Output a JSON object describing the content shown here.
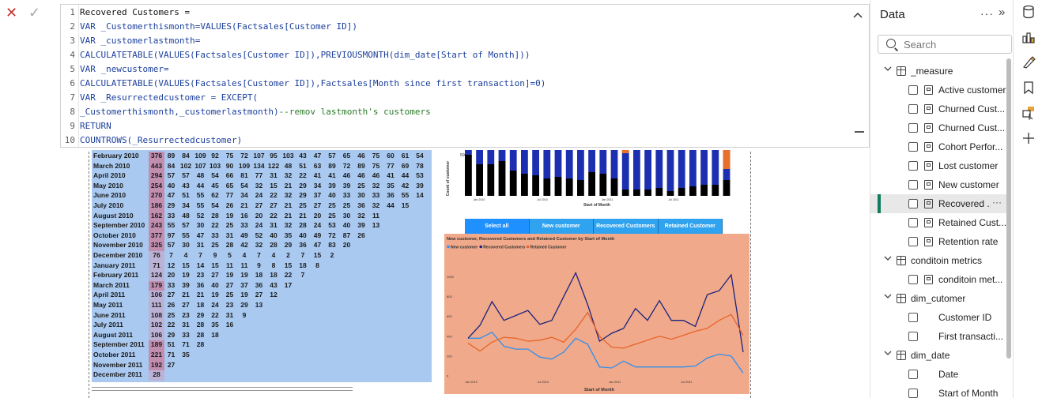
{
  "formula_bar": {
    "cancel_glyph": "✕",
    "commit_glyph": "✓",
    "lines": [
      {
        "n": "1",
        "segments": [
          {
            "t": "Recovered Customers =",
            "c": "black"
          }
        ]
      },
      {
        "n": "2",
        "segments": [
          {
            "t": "VAR _Customerthismonth=VALUES(Factsales[Customer ID])",
            "c": "blue"
          }
        ]
      },
      {
        "n": "3",
        "segments": [
          {
            "t": "VAR _customerlastmonth=",
            "c": "blue"
          }
        ]
      },
      {
        "n": "4",
        "segments": [
          {
            "t": "CALCULATETABLE(VALUES(Factsales[Customer ID]),PREVIOUSMONTH(dim_date[Start of Month]))",
            "c": "blue"
          }
        ]
      },
      {
        "n": "5",
        "segments": [
          {
            "t": "VAR _newcustomer=",
            "c": "blue"
          }
        ]
      },
      {
        "n": "6",
        "segments": [
          {
            "t": "CALCULATETABLE(VALUES(Factsales[Customer ID]),Factsales[Month since first transaction]=0)",
            "c": "blue"
          }
        ]
      },
      {
        "n": "7",
        "segments": [
          {
            "t": "VAR _Resurrectedcustomer = EXCEPT(",
            "c": "blue"
          }
        ]
      },
      {
        "n": "8",
        "segments": [
          {
            "t": "_Customerthismonth,_customerlastmonth)",
            "c": "blue"
          },
          {
            "t": "--remov lastmonth's customers",
            "c": "green"
          }
        ]
      },
      {
        "n": "9",
        "segments": [
          {
            "t": "RETURN",
            "c": "blue"
          }
        ]
      },
      {
        "n": "10",
        "segments": [
          {
            "t": "COUNTROWS(_Resurrectedcustomer)",
            "c": "blue"
          }
        ]
      }
    ],
    "collapse_glyph": "^"
  },
  "matrix": {
    "rows": [
      {
        "label": "February 2010",
        "values": [
          "376",
          "89",
          "84",
          "109",
          "92",
          "75",
          "72",
          "107",
          "95",
          "103",
          "43",
          "47",
          "57",
          "65",
          "46",
          "75",
          "60",
          "61",
          "54"
        ]
      },
      {
        "label": "March 2010",
        "values": [
          "443",
          "84",
          "102",
          "107",
          "103",
          "90",
          "109",
          "134",
          "122",
          "48",
          "51",
          "63",
          "89",
          "72",
          "89",
          "75",
          "77",
          "69",
          "78"
        ]
      },
      {
        "label": "April 2010",
        "values": [
          "294",
          "57",
          "57",
          "48",
          "54",
          "66",
          "81",
          "77",
          "31",
          "32",
          "22",
          "41",
          "41",
          "46",
          "46",
          "46",
          "41",
          "44",
          "53"
        ]
      },
      {
        "label": "May 2010",
        "values": [
          "254",
          "40",
          "43",
          "44",
          "45",
          "65",
          "54",
          "32",
          "15",
          "21",
          "29",
          "34",
          "39",
          "39",
          "25",
          "32",
          "35",
          "42",
          "39"
        ]
      },
      {
        "label": "June 2010",
        "values": [
          "270",
          "47",
          "51",
          "55",
          "62",
          "77",
          "34",
          "24",
          "22",
          "32",
          "29",
          "37",
          "40",
          "33",
          "30",
          "33",
          "36",
          "55",
          "14"
        ]
      },
      {
        "label": "July 2010",
        "values": [
          "186",
          "29",
          "34",
          "55",
          "54",
          "26",
          "21",
          "27",
          "27",
          "21",
          "25",
          "27",
          "25",
          "25",
          "36",
          "32",
          "44",
          "15"
        ]
      },
      {
        "label": "August 2010",
        "values": [
          "162",
          "33",
          "48",
          "52",
          "28",
          "19",
          "16",
          "20",
          "22",
          "21",
          "21",
          "20",
          "25",
          "30",
          "32",
          "11"
        ]
      },
      {
        "label": "September 2010",
        "values": [
          "243",
          "55",
          "57",
          "30",
          "22",
          "25",
          "33",
          "24",
          "31",
          "32",
          "28",
          "24",
          "53",
          "40",
          "39",
          "13"
        ]
      },
      {
        "label": "October 2010",
        "values": [
          "377",
          "97",
          "55",
          "47",
          "33",
          "31",
          "49",
          "52",
          "40",
          "35",
          "40",
          "49",
          "72",
          "87",
          "26"
        ]
      },
      {
        "label": "November 2010",
        "values": [
          "325",
          "57",
          "30",
          "31",
          "25",
          "28",
          "42",
          "32",
          "28",
          "29",
          "36",
          "47",
          "83",
          "20"
        ]
      },
      {
        "label": "December 2010",
        "values": [
          "76",
          "7",
          "4",
          "7",
          "9",
          "5",
          "4",
          "7",
          "4",
          "2",
          "7",
          "15",
          "2"
        ]
      },
      {
        "label": "January 2011",
        "values": [
          "71",
          "12",
          "15",
          "14",
          "15",
          "11",
          "11",
          "9",
          "8",
          "15",
          "18",
          "8"
        ]
      },
      {
        "label": "February 2011",
        "values": [
          "124",
          "20",
          "19",
          "23",
          "27",
          "19",
          "19",
          "18",
          "18",
          "22",
          "7"
        ]
      },
      {
        "label": "March 2011",
        "values": [
          "179",
          "33",
          "39",
          "36",
          "40",
          "27",
          "37",
          "36",
          "43",
          "17"
        ]
      },
      {
        "label": "April 2011",
        "values": [
          "106",
          "27",
          "21",
          "21",
          "19",
          "25",
          "19",
          "27",
          "12"
        ]
      },
      {
        "label": "May 2011",
        "values": [
          "111",
          "26",
          "27",
          "18",
          "24",
          "23",
          "29",
          "13"
        ]
      },
      {
        "label": "June 2011",
        "values": [
          "108",
          "25",
          "23",
          "29",
          "22",
          "31",
          "9"
        ]
      },
      {
        "label": "July 2011",
        "values": [
          "102",
          "22",
          "31",
          "28",
          "35",
          "16"
        ]
      },
      {
        "label": "August 2011",
        "values": [
          "106",
          "29",
          "33",
          "28",
          "18"
        ]
      },
      {
        "label": "September 2011",
        "values": [
          "189",
          "51",
          "71",
          "28"
        ]
      },
      {
        "label": "October 2011",
        "values": [
          "221",
          "71",
          "35"
        ]
      },
      {
        "label": "November 2011",
        "values": [
          "192",
          "27"
        ]
      },
      {
        "label": "December 2011",
        "values": [
          "28"
        ]
      }
    ]
  },
  "bar_chart": {
    "ylabel": "Count of customer",
    "xlabel": "Start of Month",
    "ytick": "500",
    "xticks": [
      "Jan 2010",
      "Jul 2010",
      "Jan 2011",
      "Jul 2011"
    ],
    "colors": {
      "black": "#000000",
      "blue": "#1c2fb0",
      "orange": "#e8702a"
    }
  },
  "slicer": {
    "buttons": [
      "Select all",
      "New customer",
      "Recovered Customers",
      "Retained Customer"
    ]
  },
  "chart_data": {
    "type": "line",
    "title": "New customer, Recovered Customers and Retained Customer by Start of Month",
    "xlabel": "Start of Month",
    "ylabel": "",
    "xticks": [
      "Jan 2010",
      "Jul 2010",
      "Jan 2011",
      "Jul 2011"
    ],
    "yticks": [
      "0",
      "200",
      "400",
      "600",
      "800",
      "1000"
    ],
    "ylim": [
      0,
      1100
    ],
    "background": "#f0a98a",
    "x": [
      "2010-01",
      "2010-02",
      "2010-03",
      "2010-04",
      "2010-05",
      "2010-06",
      "2010-07",
      "2010-08",
      "2010-09",
      "2010-10",
      "2010-11",
      "2010-12",
      "2011-01",
      "2011-02",
      "2011-03",
      "2011-04",
      "2011-05",
      "2011-06",
      "2011-07",
      "2011-08",
      "2011-09",
      "2011-10",
      "2011-11",
      "2011-12"
    ],
    "series": [
      {
        "name": "New customer",
        "color": "#2e8ff0",
        "values": [
          380,
          380,
          440,
          300,
          270,
          270,
          190,
          170,
          240,
          380,
          320,
          90,
          80,
          150,
          90,
          90,
          90,
          90,
          90,
          100,
          180,
          220,
          200,
          30
        ]
      },
      {
        "name": "Recovered Customers",
        "color": "#1a237e",
        "values": [
          380,
          510,
          750,
          560,
          610,
          660,
          520,
          560,
          800,
          1040,
          720,
          350,
          430,
          480,
          680,
          560,
          760,
          560,
          560,
          500,
          820,
          860,
          1020,
          240
        ]
      },
      {
        "name": "Retained Customer",
        "color": "#e8642a",
        "values": [
          330,
          250,
          340,
          390,
          380,
          350,
          360,
          390,
          340,
          470,
          640,
          400,
          290,
          280,
          320,
          360,
          400,
          370,
          410,
          450,
          480,
          560,
          620,
          410
        ]
      }
    ]
  },
  "data_pane": {
    "title": "Data",
    "more_glyph": "···",
    "collapse_glyph": "»",
    "search_placeholder": "Search",
    "items": [
      {
        "kind": "table",
        "icon": "calc-table-icon",
        "label": "_measure",
        "level": 0
      },
      {
        "kind": "field",
        "icon": "measure-icon",
        "label": "Active customer",
        "level": 1
      },
      {
        "kind": "field",
        "icon": "measure-icon",
        "label": "Churned Cust...",
        "level": 1
      },
      {
        "kind": "field",
        "icon": "measure-icon",
        "label": "Churned Cust...",
        "level": 1
      },
      {
        "kind": "field",
        "icon": "measure-icon",
        "label": "Cohort Perfor...",
        "level": 1
      },
      {
        "kind": "field",
        "icon": "measure-icon",
        "label": "Lost customer",
        "level": 1
      },
      {
        "kind": "field",
        "icon": "measure-icon",
        "label": "New customer",
        "level": 1
      },
      {
        "kind": "field",
        "icon": "measure-icon",
        "label": "Recovered ...",
        "level": 1,
        "selected": true
      },
      {
        "kind": "field",
        "icon": "measure-icon",
        "label": "Retained Cust...",
        "level": 1
      },
      {
        "kind": "field",
        "icon": "measure-icon",
        "label": "Retention rate",
        "level": 1
      },
      {
        "kind": "table",
        "icon": "table-icon",
        "label": "conditoin metrics",
        "level": 0
      },
      {
        "kind": "field",
        "icon": "measure-icon",
        "label": "conditoin met...",
        "level": 1
      },
      {
        "kind": "table",
        "icon": "table-icon",
        "label": "dim_cutomer",
        "level": 0
      },
      {
        "kind": "field",
        "icon": "",
        "label": "Customer ID",
        "level": 1
      },
      {
        "kind": "field",
        "icon": "",
        "label": "First transacti...",
        "level": 1
      },
      {
        "kind": "table",
        "icon": "table-icon",
        "label": "dim_date",
        "level": 0
      },
      {
        "kind": "field",
        "icon": "",
        "label": "Date",
        "level": 1
      },
      {
        "kind": "field",
        "icon": "",
        "label": "Start of Month",
        "level": 1
      }
    ]
  },
  "rail": {
    "icons": [
      "data-cylinder-icon",
      "visualizations-icon",
      "format-icon",
      "bookmark-icon",
      "selection-icon",
      "add-icon"
    ]
  }
}
